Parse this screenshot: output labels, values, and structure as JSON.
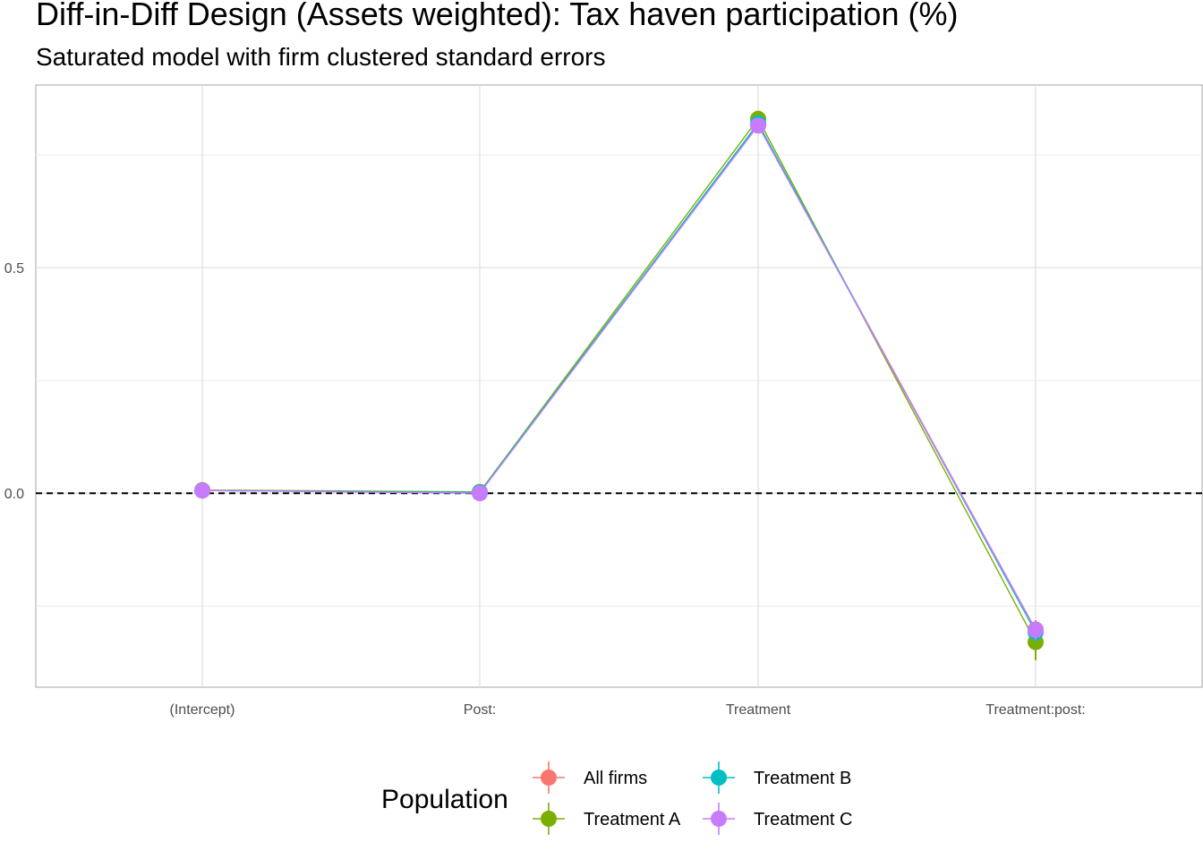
{
  "chart_data": {
    "type": "line",
    "title": "Diff-in-Diff Design (Assets weighted): Tax haven participation (%)",
    "subtitle": "Saturated model with firm clustered standard errors",
    "xlabel": "",
    "ylabel": "",
    "categories": [
      "(Intercept)",
      "Post:",
      "Treatment",
      "Treatment:post:"
    ],
    "ylim": [
      -0.43,
      0.905
    ],
    "y_ticks": [
      0.0,
      0.5
    ],
    "y_tick_labels": [
      "0.0",
      "0.5"
    ],
    "minor_gridlines_y": [
      -0.25,
      0.25,
      0.75
    ],
    "reference_line": {
      "y": 0,
      "style": "dashed"
    },
    "grid": true,
    "legend": {
      "title": "Population",
      "position": "bottom"
    },
    "series": [
      {
        "name": "All firms",
        "color": "#F8766D",
        "values": [
          0.006,
          0.001,
          0.818,
          -0.302
        ],
        "ci_low": [
          0.002,
          -0.003,
          0.808,
          -0.322
        ],
        "ci_high": [
          0.01,
          0.005,
          0.828,
          -0.282
        ]
      },
      {
        "name": "Treatment A",
        "color": "#7CAE00",
        "values": [
          0.007,
          0.003,
          0.83,
          -0.33
        ],
        "ci_low": [
          0.003,
          -0.001,
          0.818,
          -0.37
        ],
        "ci_high": [
          0.011,
          0.007,
          0.842,
          -0.29
        ]
      },
      {
        "name": "Treatment B",
        "color": "#00BFC4",
        "values": [
          0.006,
          0.002,
          0.82,
          -0.308
        ],
        "ci_low": [
          0.002,
          -0.002,
          0.81,
          -0.33
        ],
        "ci_high": [
          0.01,
          0.006,
          0.83,
          -0.286
        ]
      },
      {
        "name": "Treatment C",
        "color": "#C77CFF",
        "values": [
          0.006,
          0.0,
          0.815,
          -0.303
        ],
        "ci_low": [
          0.002,
          -0.004,
          0.805,
          -0.325
        ],
        "ci_high": [
          0.01,
          0.004,
          0.825,
          -0.281
        ]
      }
    ]
  }
}
